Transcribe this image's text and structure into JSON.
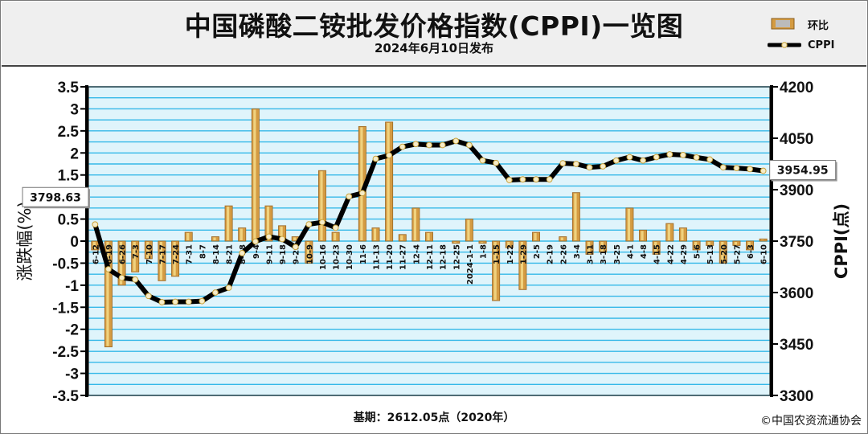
{
  "header": {
    "title": "中国磷酸二铵批发价格指数(CPPI)一览图",
    "subtitle": "2024年6月10日发布"
  },
  "legend": {
    "bar_label": "环比",
    "line_label": "CPPI"
  },
  "footer": {
    "base": "基期：2612.05点（2020年）",
    "copyright": "©中国农资流通协会"
  },
  "colors": {
    "plot_bg": "#dff4fb",
    "gridline": "#35b8e8",
    "bar": "#d49b42",
    "bar_highlight": "#f4dc88",
    "line": "#000000",
    "marker": "#f6ecc8"
  },
  "chart_data": {
    "type": "bar+line",
    "x": [
      "6-12",
      "6-19",
      "6-26",
      "7-3",
      "7-10",
      "7-17",
      "7-24",
      "7-31",
      "8-7",
      "8-14",
      "8-21",
      "8-28",
      "9-4",
      "9-11",
      "9-18",
      "9-25",
      "10-9",
      "10-16",
      "10-23",
      "10-30",
      "11-6",
      "11-13",
      "11-20",
      "11-27",
      "12-4",
      "12-11",
      "12-18",
      "12-25",
      "2024-1-1",
      "1-8",
      "1-15",
      "1-22",
      "1-29",
      "2-5",
      "2-19",
      "2-26",
      "3-4",
      "3-11",
      "3-18",
      "3-25",
      "4-1",
      "4-8",
      "4-15",
      "4-22",
      "4-29",
      "5-6",
      "5-13",
      "5-20",
      "5-27",
      "6-3",
      "6-10"
    ],
    "series": [
      {
        "name": "环比",
        "axis": "left",
        "type": "bar",
        "values": [
          -0.2,
          -2.4,
          -1.0,
          -0.7,
          -0.4,
          -0.9,
          -0.8,
          0.2,
          0.0,
          0.1,
          0.8,
          0.3,
          3.0,
          0.8,
          0.35,
          0.1,
          -0.5,
          1.6,
          0.2,
          0.0,
          2.6,
          0.3,
          2.7,
          0.15,
          0.75,
          0.2,
          0.0,
          -0.05,
          0.5,
          -0.05,
          -1.35,
          -0.15,
          -1.1,
          0.2,
          0.0,
          0.1,
          1.1,
          -0.3,
          -0.25,
          0.0,
          0.75,
          0.25,
          -0.3,
          0.4,
          0.3,
          -0.2,
          -0.1,
          -0.5,
          -0.1,
          -0.2,
          0.05
        ]
      },
      {
        "name": "CPPI",
        "axis": "right",
        "type": "line",
        "values": [
          3798.63,
          3668,
          3643,
          3638,
          3590,
          3572,
          3573,
          3573,
          3575,
          3600,
          3614,
          3715,
          3749,
          3763,
          3756,
          3733,
          3799,
          3805,
          3789,
          3880,
          3890,
          3990,
          4000,
          4025,
          4033,
          4030,
          4030,
          4042,
          4030,
          3985,
          3978,
          3928,
          3930,
          3930,
          3930,
          3977,
          3975,
          3965,
          3968,
          3985,
          3995,
          3985,
          3995,
          4003,
          4001,
          3994,
          3988,
          3965,
          3963,
          3960,
          3954.95
        ]
      }
    ],
    "y_left": {
      "label": "涨跌幅(%)",
      "min": -3.5,
      "max": 3.5,
      "ticks": [
        "3.5",
        "3",
        "2.5",
        "2",
        "1.5",
        "1",
        "0.5",
        "0",
        "-0.5",
        "-1",
        "-1.5",
        "-2",
        "-2.5",
        "-3",
        "-3.5"
      ]
    },
    "y_right": {
      "label": "CPPI(点)",
      "min": 3300,
      "max": 4200,
      "ticks": [
        "4200",
        "4050",
        "3900",
        "3750",
        "3600",
        "3450",
        "3300"
      ]
    },
    "annotations": [
      {
        "series": "CPPI",
        "index": 0,
        "text": "3798.63"
      },
      {
        "series": "CPPI",
        "index": 50,
        "text": "3954.95"
      }
    ],
    "grid": true,
    "legend_position": "top-right"
  }
}
